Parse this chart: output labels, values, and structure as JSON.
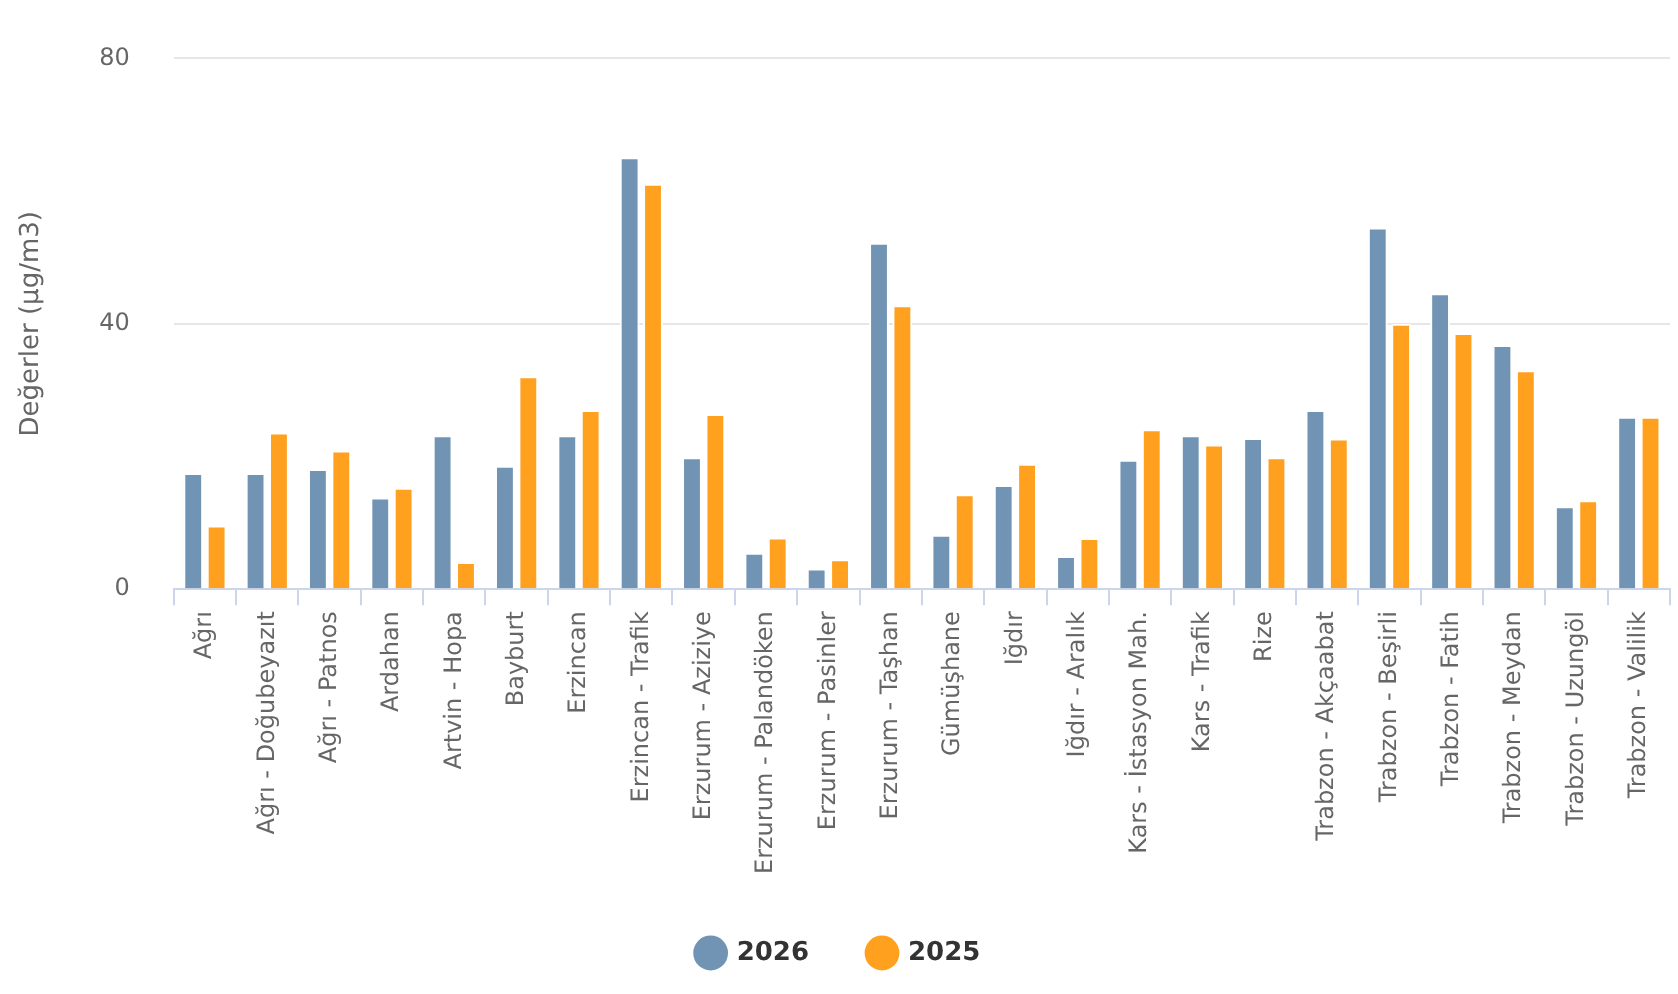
{
  "chart_data": {
    "type": "bar",
    "ylabel": "Değerler (µg/m3)",
    "categories": [
      "Ağrı",
      "Ağrı - Doğubeyazıt",
      "Ağrı - Patnos",
      "Ardahan",
      "Artvin - Hopa",
      "Bayburt",
      "Erzincan",
      "Erzincan - Trafik",
      "Erzurum - Aziziye",
      "Erzurum - Palandöken",
      "Erzurum - Pasinler",
      "Erzurum - Taşhan",
      "Gümüşhane",
      "Iğdır",
      "Iğdır - Aralık",
      "Kars - İstasyon Mah.",
      "Kars - Trafik",
      "Rize",
      "Trabzon - Akçaabat",
      "Trabzon - Beşirli",
      "Trabzon - Fatih",
      "Trabzon - Meydan",
      "Trabzon - Uzungöl",
      "Trabzon - Valilik"
    ],
    "series": [
      {
        "name": "2026",
        "color": "#7294b4",
        "values": [
          17.5,
          17.5,
          18.1,
          13.8,
          23.2,
          18.6,
          23.2,
          65.1,
          19.9,
          5.5,
          3.1,
          52.2,
          8.2,
          15.7,
          5.0,
          19.5,
          23.2,
          22.8,
          27.0,
          54.5,
          44.6,
          36.8,
          12.5,
          26.0
        ]
      },
      {
        "name": "2025",
        "color": "#ffa01e",
        "values": [
          9.6,
          23.6,
          20.9,
          15.3,
          4.1,
          32.1,
          27.0,
          61.1,
          26.4,
          7.8,
          4.5,
          42.8,
          14.3,
          18.9,
          7.7,
          24.1,
          21.8,
          19.9,
          22.7,
          40.0,
          38.6,
          33.0,
          13.4,
          26.0
        ]
      }
    ],
    "ylim": [
      0,
      80
    ],
    "yticks": [
      0,
      40,
      80
    ],
    "grid": "y",
    "legend": "bottom"
  }
}
